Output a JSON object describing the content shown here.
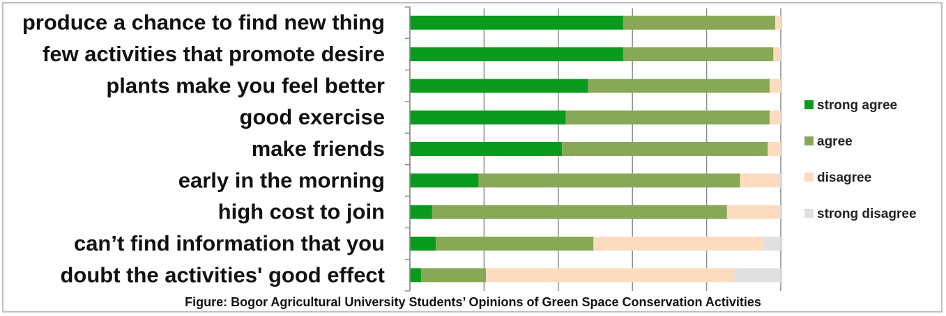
{
  "chart_data": {
    "type": "bar",
    "orientation": "horizontal",
    "stacked": "100%",
    "caption": "Figure: Bogor Agricultural University Students’ Opinions of Green Space Conservation Activities",
    "categories": [
      "produce a chance to find new thing",
      "few activities that promote desire",
      "plants make you feel better",
      "good exercise",
      "make friends",
      "early in the morning",
      "high cost to join",
      "can’t find information that you",
      "doubt the activities' good effect"
    ],
    "series": [
      {
        "name": "strong agree",
        "color": "#0a9a1e",
        "values": [
          57.5,
          57.5,
          48.0,
          42.0,
          41.0,
          18.5,
          6.0,
          7.0,
          3.0
        ]
      },
      {
        "name": "agree",
        "color": "#88a858",
        "values": [
          41.0,
          40.5,
          49.0,
          55.0,
          55.5,
          70.5,
          79.5,
          42.5,
          17.5
        ]
      },
      {
        "name": "disagree",
        "color": "#fcdcc0",
        "values": [
          1.5,
          1.5,
          3.0,
          3.0,
          3.5,
          10.5,
          14.0,
          46.0,
          67.0
        ]
      },
      {
        "name": "strong disagree",
        "color": "#e0e0e0",
        "values": [
          0.0,
          0.5,
          0.0,
          0.0,
          0.0,
          0.5,
          0.5,
          4.5,
          12.5
        ]
      }
    ],
    "xlim": [
      0,
      100
    ],
    "grid": true,
    "legend_position": "right"
  }
}
